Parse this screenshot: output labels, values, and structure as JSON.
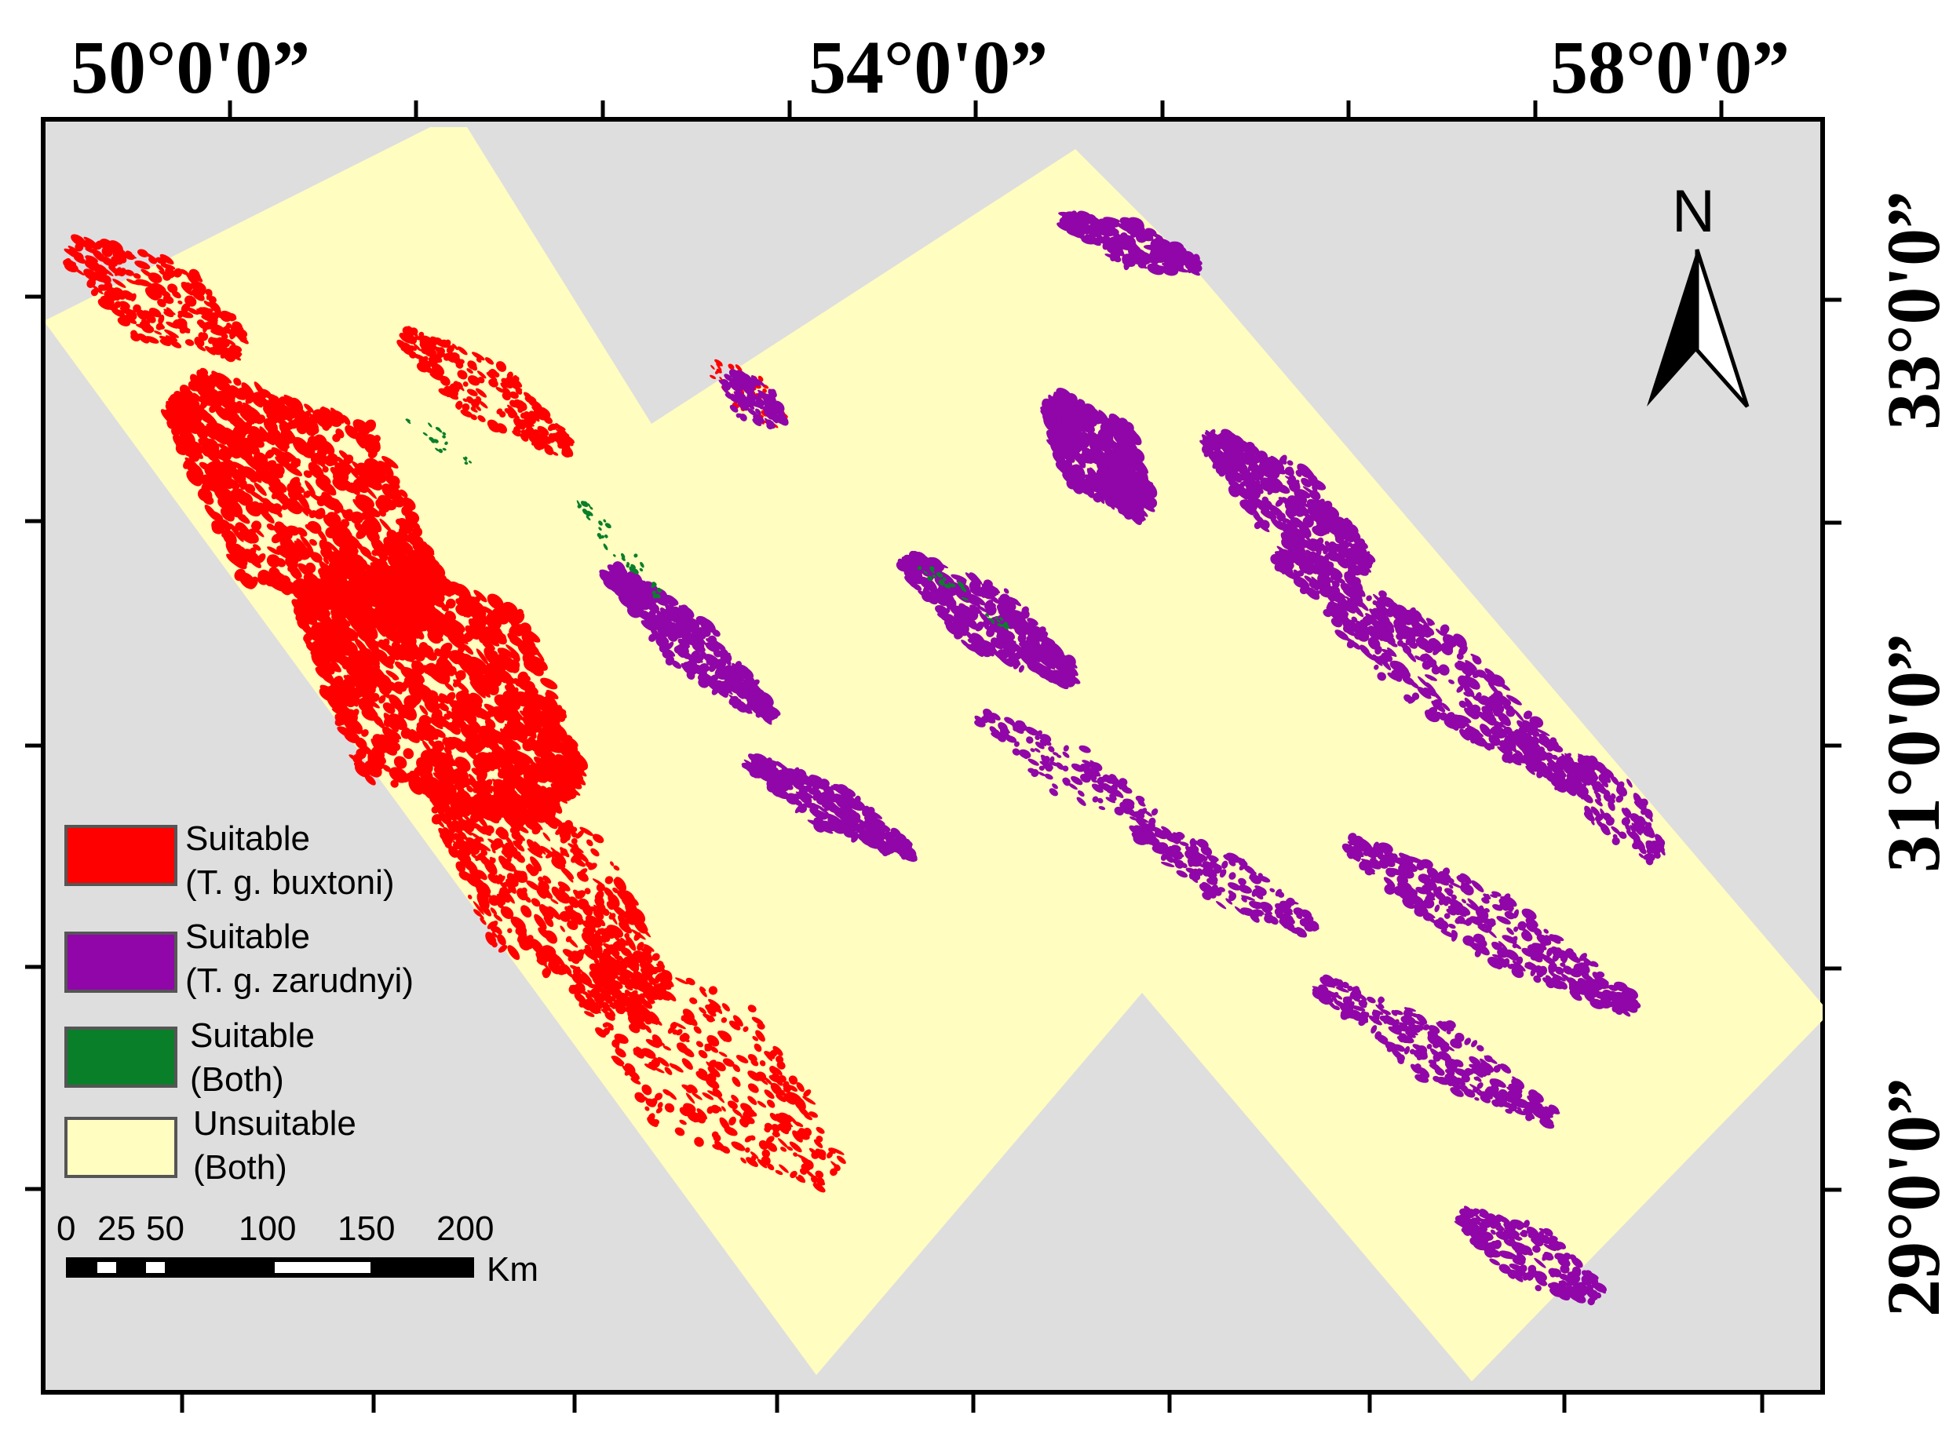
{
  "map": {
    "colors": {
      "background": "#dedede",
      "unsuitable": "#fffdc0",
      "buxtoni": "#ff0000",
      "zarudnyi": "#9006a8",
      "both": "#0a7f2a"
    },
    "lon_labels": [
      "50°0'0”",
      "54°0'0”",
      "58°0'0”"
    ],
    "lat_labels": [
      "33°0'0”",
      "31°0'0”",
      "29°0'0”"
    ],
    "north_label": "N"
  },
  "legend": {
    "items": [
      {
        "line1": "Suitable",
        "line2": "(T. g. buxtoni)",
        "color": "#ff0000"
      },
      {
        "line1": "Suitable",
        "line2": "(T. g. zarudnyi)",
        "color": "#9006a8"
      },
      {
        "line1": "Suitable",
        "line2": "(Both)",
        "color": "#0a7f2a"
      },
      {
        "line1": "Unsuitable",
        "line2": "(Both)",
        "color": "#fffdc0"
      }
    ]
  },
  "scale_bar": {
    "ticks": [
      "0",
      "25",
      "50",
      "100",
      "150",
      "200"
    ],
    "unit": "Km"
  }
}
